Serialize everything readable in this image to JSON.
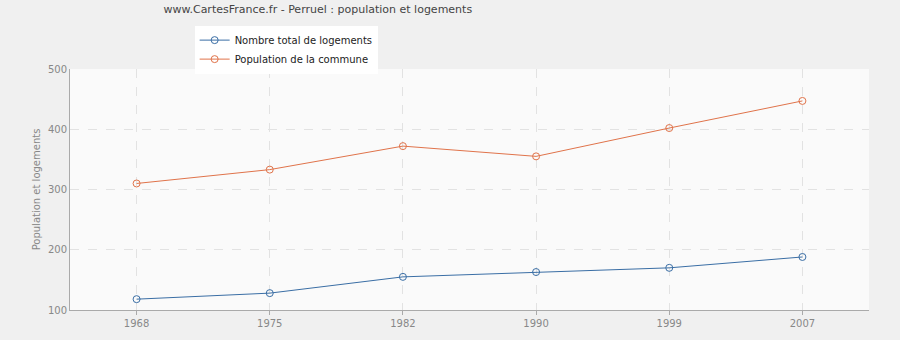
{
  "chart_data": {
    "type": "line",
    "title": "www.CartesFrance.fr - Perruel : population et logements",
    "y_label": "Population et logements",
    "categories": [
      "1968",
      "1975",
      "1982",
      "1990",
      "1999",
      "2007"
    ],
    "series": [
      {
        "name": "Nombre total de logements",
        "color": "#3a6ea5",
        "values": [
          118,
          128,
          155,
          163,
          170,
          188
        ]
      },
      {
        "name": "Population de la commune",
        "color": "#e0734a",
        "values": [
          310,
          333,
          372,
          355,
          402,
          447
        ]
      }
    ],
    "ylim": [
      100,
      500
    ],
    "yticks": [
      100,
      200,
      300,
      400,
      500
    ],
    "grid": true,
    "legend": "top",
    "marker": "circle-open"
  }
}
